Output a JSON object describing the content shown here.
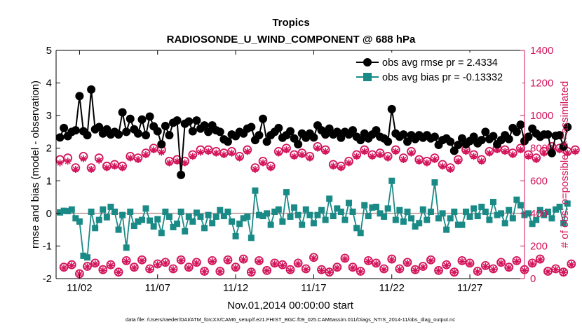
{
  "chart_data": {
    "type": "line",
    "title": "Tropics",
    "subtitle": "RADIOSONDE_U_WIND_COMPONENT @ 688 hPa",
    "xlabel": "Nov.01,2014 00:00:00 start",
    "ylabel_left": "rmse and bias (model - observation)",
    "ylabel_right": "# of obs: o=possible; ∗=assimilated",
    "ylim_left": [
      -2,
      5
    ],
    "ylim_right": [
      0,
      1400
    ],
    "xlim": [
      0.5,
      30.5
    ],
    "xticks": [
      2,
      7,
      12,
      17,
      22,
      27
    ],
    "xtick_labels": [
      "11/02",
      "11/07",
      "11/12",
      "11/17",
      "11/22",
      "11/27"
    ],
    "yticks_left": [
      -2,
      -1,
      0,
      1,
      2,
      3,
      4,
      5
    ],
    "ytick_labels_left": [
      "-2",
      "-1",
      "0",
      "1",
      "2",
      "3",
      "4",
      "5"
    ],
    "yticks_right": [
      0,
      200,
      400,
      600,
      800,
      1000,
      1200,
      1400
    ],
    "ytick_labels_right": [
      "0",
      "200",
      "400",
      "600",
      "800",
      "1000",
      "1200",
      "1400"
    ],
    "legend": {
      "position": "top-right",
      "entries": [
        "obs avg rmse pr = 2.4334",
        "obs avg bias pr = -0.13332"
      ]
    },
    "colors": {
      "rmse": "#000000",
      "bias": "#1a8a87",
      "obs": "#d3145a",
      "zero_line": "#c8a8a8"
    },
    "x_step_days": 0.25,
    "series": [
      {
        "name": "obs avg rmse pr",
        "axis": "left",
        "x_start": 0.75,
        "values": [
          2.33,
          2.62,
          2.37,
          2.5,
          2.55,
          3.6,
          2.52,
          2.4,
          3.8,
          2.58,
          2.65,
          2.45,
          2.58,
          2.42,
          2.5,
          2.42,
          3.1,
          2.5,
          2.9,
          2.58,
          2.45,
          2.88,
          2.4,
          2.97,
          2.67,
          2.52,
          2.12,
          2.68,
          2.4,
          2.78,
          2.85,
          1.18,
          2.75,
          2.82,
          2.52,
          2.85,
          2.6,
          2.7,
          2.5,
          2.7,
          2.55,
          2.5,
          2.27,
          2.2,
          2.42,
          2.37,
          2.5,
          2.45,
          2.6,
          2.65,
          2.25,
          2.4,
          2.9,
          2.2,
          2.4,
          2.5,
          2.62,
          2.32,
          2.4,
          2.52,
          2.3,
          2.12,
          2.45,
          2.32,
          2.45,
          2.33,
          2.7,
          2.55,
          2.42,
          2.6,
          2.42,
          2.5,
          2.32,
          2.5,
          2.42,
          2.55,
          2.35,
          2.25,
          2.45,
          2.3,
          2.42,
          2.55,
          2.35,
          2.3,
          2.2,
          3.2,
          2.45,
          2.35,
          2.42,
          2.2,
          2.4,
          2.28,
          2.4,
          2.32,
          2.4,
          2.3,
          2.35,
          2.1,
          2.25,
          2.3,
          2.2,
          1.92,
          2.1,
          2.3,
          2.12,
          2.22,
          2.35,
          2.15,
          2.25,
          2.5,
          2.28,
          2.37,
          2.12,
          2.25,
          2.4,
          2.28,
          2.62,
          2.5,
          2.72,
          2.22,
          2.35,
          2.6,
          2.45,
          2.35,
          2.42,
          2.42,
          1.85,
          2.38,
          2.4,
          2.05,
          2.65
        ]
      },
      {
        "name": "obs avg bias pr",
        "axis": "left",
        "x_start": 0.75,
        "values": [
          0.03,
          0.08,
          0.07,
          0.12,
          -0.15,
          -0.25,
          -1.3,
          -1.35,
          0.05,
          -0.45,
          -0.2,
          0.12,
          -0.12,
          0.2,
          0.05,
          -0.5,
          -0.05,
          -1.05,
          0.05,
          -0.38,
          -0.25,
          -0.2,
          0.15,
          -0.22,
          -0.4,
          -0.18,
          -0.6,
          0.05,
          -0.1,
          -0.42,
          -0.32,
          0.05,
          -0.55,
          -0.1,
          -0.25,
          0.02,
          -0.1,
          -0.45,
          -0.05,
          -0.3,
          -0.1,
          0.1,
          -0.08,
          0.05,
          -0.25,
          -0.7,
          -0.32,
          -0.15,
          -0.1,
          -0.75,
          0.7,
          -0.05,
          -0.08,
          0.0,
          -0.35,
          0.05,
          0.12,
          -0.25,
          0.65,
          -0.1,
          0.18,
          -0.05,
          -0.35,
          0.12,
          -0.05,
          -0.3,
          -0.05,
          0.1,
          -0.2,
          0.45,
          -0.08,
          0.15,
          0.05,
          -0.2,
          0.32,
          0.05,
          -0.45,
          -0.6,
          0.25,
          -0.08,
          0.18,
          0.2,
          0.0,
          -0.1,
          0.15,
          1.0,
          -0.2,
          0.1,
          -0.25,
          0.05,
          -0.15,
          -0.4,
          -0.3,
          0.12,
          -0.2,
          0.05,
          0.95,
          -0.15,
          0.0,
          -0.5,
          -0.15,
          0.05,
          -0.35,
          -0.35,
          0.05,
          -0.1,
          0.15,
          -0.08,
          0.2,
          0.05,
          -0.2,
          0.35,
          -0.05,
          0.0,
          -0.3,
          0.1,
          -0.15,
          0.42,
          0.25,
          -0.05,
          0.0,
          -0.32,
          -0.2,
          0.1,
          -0.05,
          0.05,
          -0.15,
          0.12,
          0.2,
          -0.3,
          0.3
        ]
      },
      {
        "name": "obs possible",
        "axis": "right",
        "x_start": 0.75,
        "values": [
          730,
          70,
          740,
          85,
          680,
          30,
          750,
          75,
          680,
          95,
          740,
          55,
          690,
          85,
          700,
          40,
          690,
          110,
          750,
          70,
          740,
          115,
          770,
          60,
          800,
          90,
          790,
          100,
          720,
          60,
          730,
          115,
          720,
          70,
          760,
          100,
          790,
          45,
          790,
          110,
          780,
          45,
          770,
          115,
          780,
          70,
          750,
          120,
          790,
          40,
          680,
          110,
          720,
          50,
          690,
          95,
          780,
          85,
          800,
          55,
          760,
          95,
          770,
          60,
          750,
          130,
          810,
          55,
          790,
          40,
          700,
          70,
          690,
          125,
          720,
          70,
          760,
          45,
          790,
          110,
          760,
          95,
          770,
          60,
          750,
          120,
          790,
          60,
          740,
          100,
          780,
          55,
          730,
          75,
          720,
          115,
          740,
          50,
          700,
          85,
          680,
          40,
          730,
          110,
          790,
          95,
          760,
          45,
          730,
          80,
          780,
          60,
          800,
          100,
          790,
          70,
          770,
          110,
          800,
          55,
          760,
          95,
          740,
          120,
          780,
          45,
          810,
          60,
          800,
          40,
          780,
          90,
          790
        ]
      },
      {
        "name": "obs assimilated",
        "axis": "right",
        "x_start": 0.75,
        "values": [
          710,
          65,
          720,
          80,
          670,
          28,
          735,
          72,
          670,
          90,
          725,
          50,
          680,
          80,
          690,
          38,
          680,
          105,
          740,
          65,
          730,
          110,
          760,
          55,
          790,
          85,
          775,
          95,
          710,
          55,
          720,
          110,
          710,
          65,
          750,
          95,
          775,
          42,
          780,
          105,
          770,
          42,
          760,
          110,
          770,
          65,
          740,
          115,
          780,
          38,
          670,
          105,
          710,
          48,
          680,
          90,
          770,
          80,
          790,
          50,
          750,
          90,
          760,
          55,
          740,
          125,
          800,
          50,
          780,
          38,
          690,
          65,
          680,
          120,
          710,
          65,
          750,
          42,
          780,
          105,
          750,
          90,
          760,
          55,
          740,
          115,
          780,
          55,
          730,
          95,
          770,
          50,
          720,
          70,
          710,
          110,
          730,
          48,
          690,
          80,
          670,
          38,
          720,
          105,
          780,
          90,
          750,
          42,
          720,
          75,
          770,
          55,
          790,
          95,
          780,
          65,
          760,
          105,
          790,
          50,
          750,
          90,
          730,
          115,
          770,
          42,
          800,
          55,
          790,
          38,
          770,
          85,
          780
        ]
      }
    ],
    "footer": "data file: /Users/raeder/DAI/ATM_forcXX/CAM6_setup/f.e21.FHIST_BGC.f09_025.CAM6assim.011/Diags_NTrS_2014-11/obs_diag_output.nc"
  }
}
